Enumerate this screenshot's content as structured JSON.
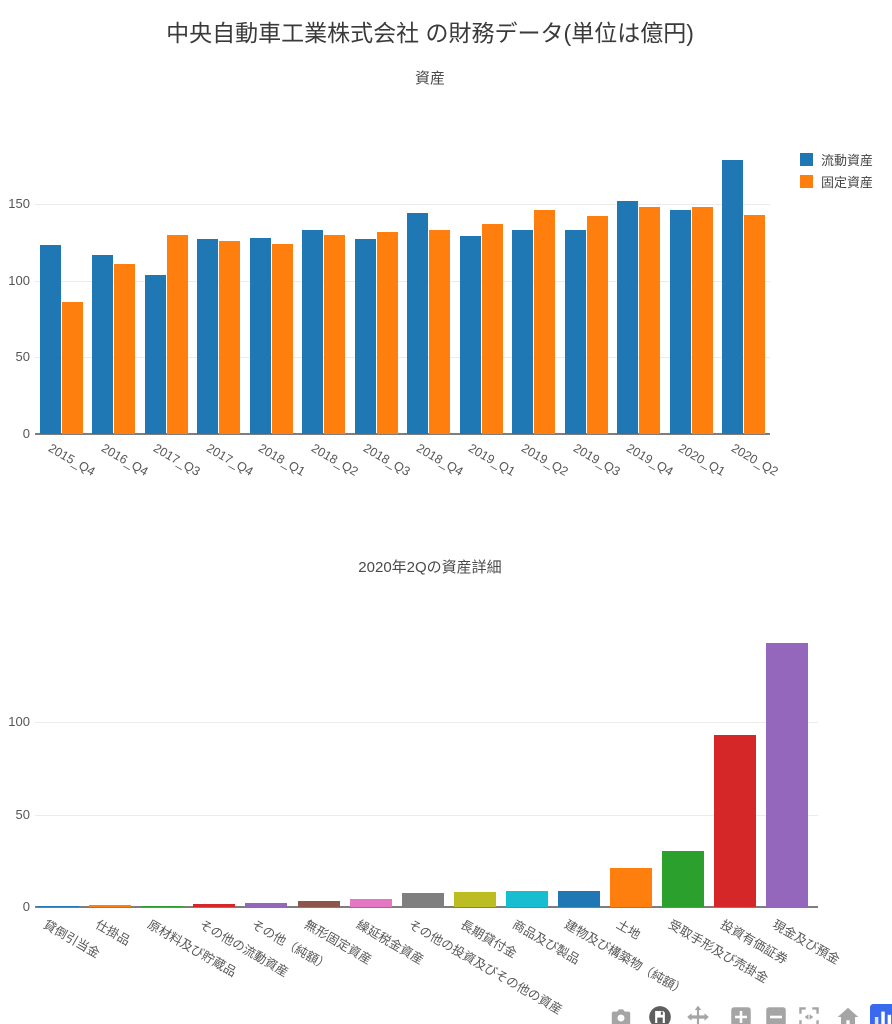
{
  "page_title": "中央自動車工業株式会社 の財務データ(単位は億円)",
  "colors": {
    "series_blue": "#1f77b4",
    "series_orange": "#ff7f0e",
    "grid": "#ebebeb",
    "axis": "#7e7e7e",
    "tick_text": "#565656",
    "title_text": "#3a3a3a",
    "plotly_logo_blue": "#3969ec"
  },
  "chart_data": [
    {
      "type": "bar",
      "title": "資産",
      "categories": [
        "2015_Q4",
        "2016_Q4",
        "2017_Q3",
        "2017_Q4",
        "2018_Q1",
        "2018_Q2",
        "2018_Q3",
        "2018_Q4",
        "2019_Q1",
        "2019_Q2",
        "2019_Q3",
        "2019_Q4",
        "2020_Q1",
        "2020_Q2"
      ],
      "series": [
        {
          "name": "流動資産",
          "color": "#1f77b4",
          "values": [
            123,
            117,
            104,
            127,
            128,
            133,
            127,
            144,
            129,
            133,
            133,
            152,
            146,
            179
          ]
        },
        {
          "name": "固定資産",
          "color": "#ff7f0e",
          "values": [
            86,
            111,
            130,
            126,
            124,
            130,
            132,
            133,
            137,
            146,
            142,
            148,
            148,
            143
          ]
        }
      ],
      "ylim": [
        0,
        190
      ],
      "yticks": [
        0,
        50,
        100,
        150
      ],
      "grid": true,
      "legend_position": "top-right",
      "xtick_angle": 30
    },
    {
      "type": "bar",
      "title": "2020年2Qの資産詳細",
      "categories": [
        "貸倒引当金",
        "仕掛品",
        "原材料及び貯蔵品",
        "その他の流動資産",
        "その他（純額）",
        "無形固定資産",
        "繰延税金資産",
        "その他の投資及びその他の資産",
        "長期貸付金",
        "商品及び製品",
        "建物及び構築物（純額）",
        "土地",
        "受取手形及び売掛金",
        "投資有価証券",
        "現金及び預金"
      ],
      "values": [
        0.4,
        0.9,
        0.8,
        1.8,
        1.9,
        3.4,
        4.3,
        7.5,
        8.1,
        8.5,
        8.7,
        21.3,
        30.1,
        92.8,
        142.8
      ],
      "bar_colors": [
        "#1f77b4",
        "#ff7f0e",
        "#2ca02c",
        "#d62728",
        "#9467bd",
        "#8c564b",
        "#e377c2",
        "#7f7f7f",
        "#bcbd22",
        "#17becf",
        "#1f77b4",
        "#ff7f0e",
        "#2ca02c",
        "#d62728",
        "#9467bd"
      ],
      "ylim": [
        0,
        147
      ],
      "yticks": [
        0,
        50,
        100
      ],
      "grid": true,
      "legend_position": "none",
      "xtick_angle": 30
    }
  ],
  "modebar": {
    "icons": [
      "camera-icon",
      "save-icon",
      "pan-icon",
      "zoom-in-icon",
      "zoom-out-icon",
      "autoscale-icon",
      "home-icon",
      "plotly-logo-icon"
    ]
  }
}
